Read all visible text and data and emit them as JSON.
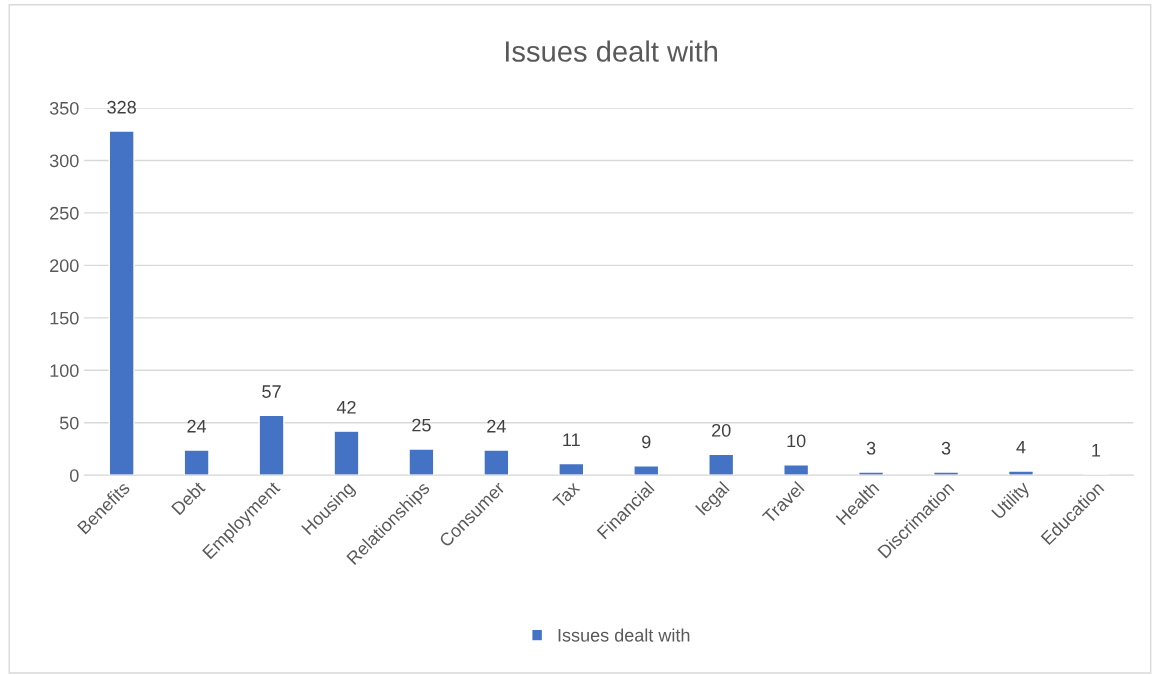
{
  "chart_data": {
    "type": "bar",
    "title": "Issues dealt with",
    "categories": [
      "Benefits",
      "Debt",
      "Employment",
      "Housing",
      "Relationships",
      "Consumer",
      "Tax",
      "Financial",
      "legal",
      "Travel",
      "Health",
      "Discrimation",
      "Utility",
      "Education"
    ],
    "series": [
      {
        "name": "Issues dealt with",
        "color": "#4472c4",
        "values": [
          328,
          24,
          57,
          42,
          25,
          24,
          11,
          9,
          20,
          10,
          3,
          3,
          4,
          1
        ]
      }
    ],
    "ylim": [
      0,
      350
    ],
    "yticks": [
      0,
      50,
      100,
      150,
      200,
      250,
      300,
      350
    ],
    "grid": "y",
    "legend": "bottom",
    "data_labels": true
  }
}
